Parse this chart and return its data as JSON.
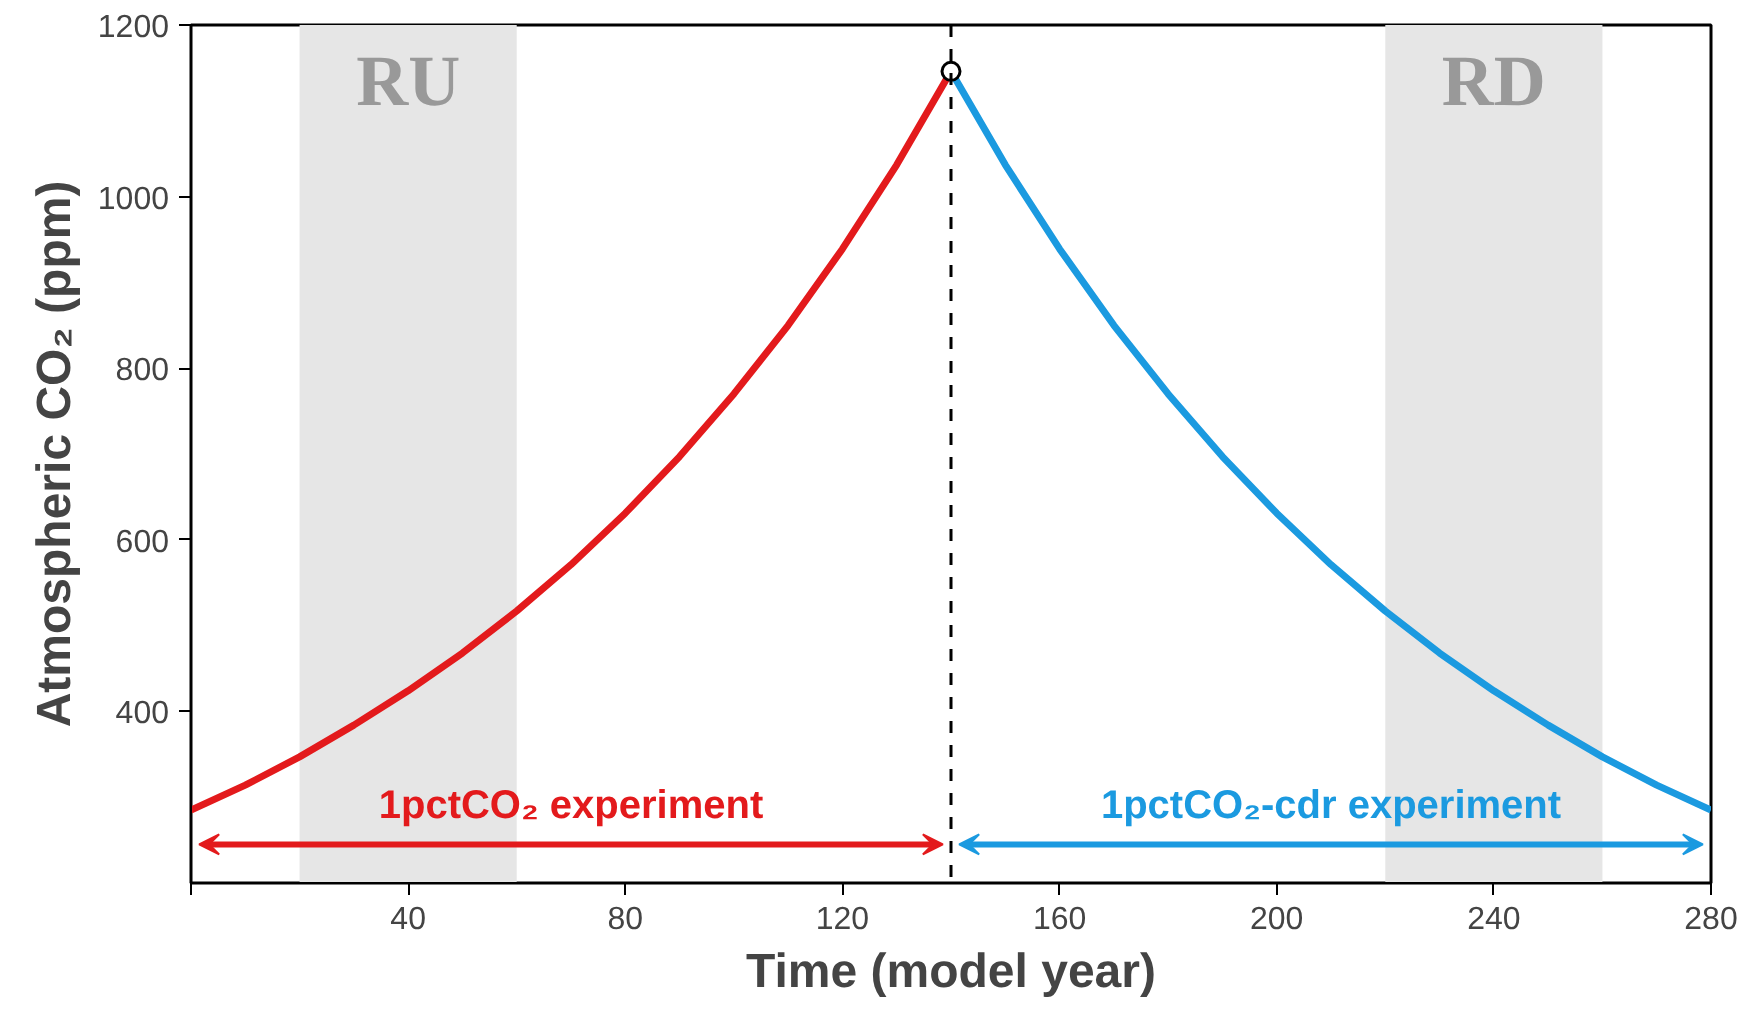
{
  "chart_data": {
    "type": "line",
    "xlabel": "Time (model year)",
    "ylabel": "Atmospheric CO₂ (ppm)",
    "xlim": [
      0,
      280
    ],
    "ylim": [
      200,
      1200
    ],
    "xticks": [
      {
        "value": 0,
        "label": null
      },
      40,
      80,
      120,
      160,
      200,
      240,
      280
    ],
    "yticks": [
      400,
      600,
      800,
      1000,
      1200
    ],
    "grid": false,
    "line_style": "solid",
    "series": [
      {
        "color": "#e31a1c",
        "x": [
          0,
          10,
          20,
          30,
          40,
          50,
          60,
          70,
          80,
          90,
          100,
          110,
          120,
          130,
          140
        ],
        "values": [
          285,
          314,
          347,
          384,
          424,
          468,
          517,
          571,
          631,
          697,
          770,
          850,
          939,
          1037,
          1146
        ]
      },
      {
        "color": "#1b9ae0",
        "x": [
          140,
          150,
          160,
          170,
          180,
          190,
          200,
          210,
          220,
          230,
          240,
          250,
          260,
          270,
          280
        ],
        "values": [
          1146,
          1037,
          939,
          850,
          770,
          697,
          631,
          571,
          517,
          468,
          424,
          384,
          347,
          314,
          285
        ]
      },
      {
        "type": "scatter",
        "marker": "circle",
        "color": "#000000",
        "x": [
          140
        ],
        "values": [
          1146
        ]
      }
    ],
    "bands": [
      {
        "axis": "x",
        "from": 20,
        "to": 60,
        "label": "RU",
        "color": "#e6e6e6"
      },
      {
        "axis": "x",
        "from": 220,
        "to": 260,
        "label": "RD",
        "color": "#e6e6e6"
      }
    ],
    "ref_lines": [
      {
        "axis": "x",
        "value": 140,
        "label": null,
        "color": "#000000",
        "line_style": "dashed"
      }
    ],
    "annotations": [
      "1pctCO₂ experiment",
      "1pctCO₂-cdr experiment"
    ]
  }
}
